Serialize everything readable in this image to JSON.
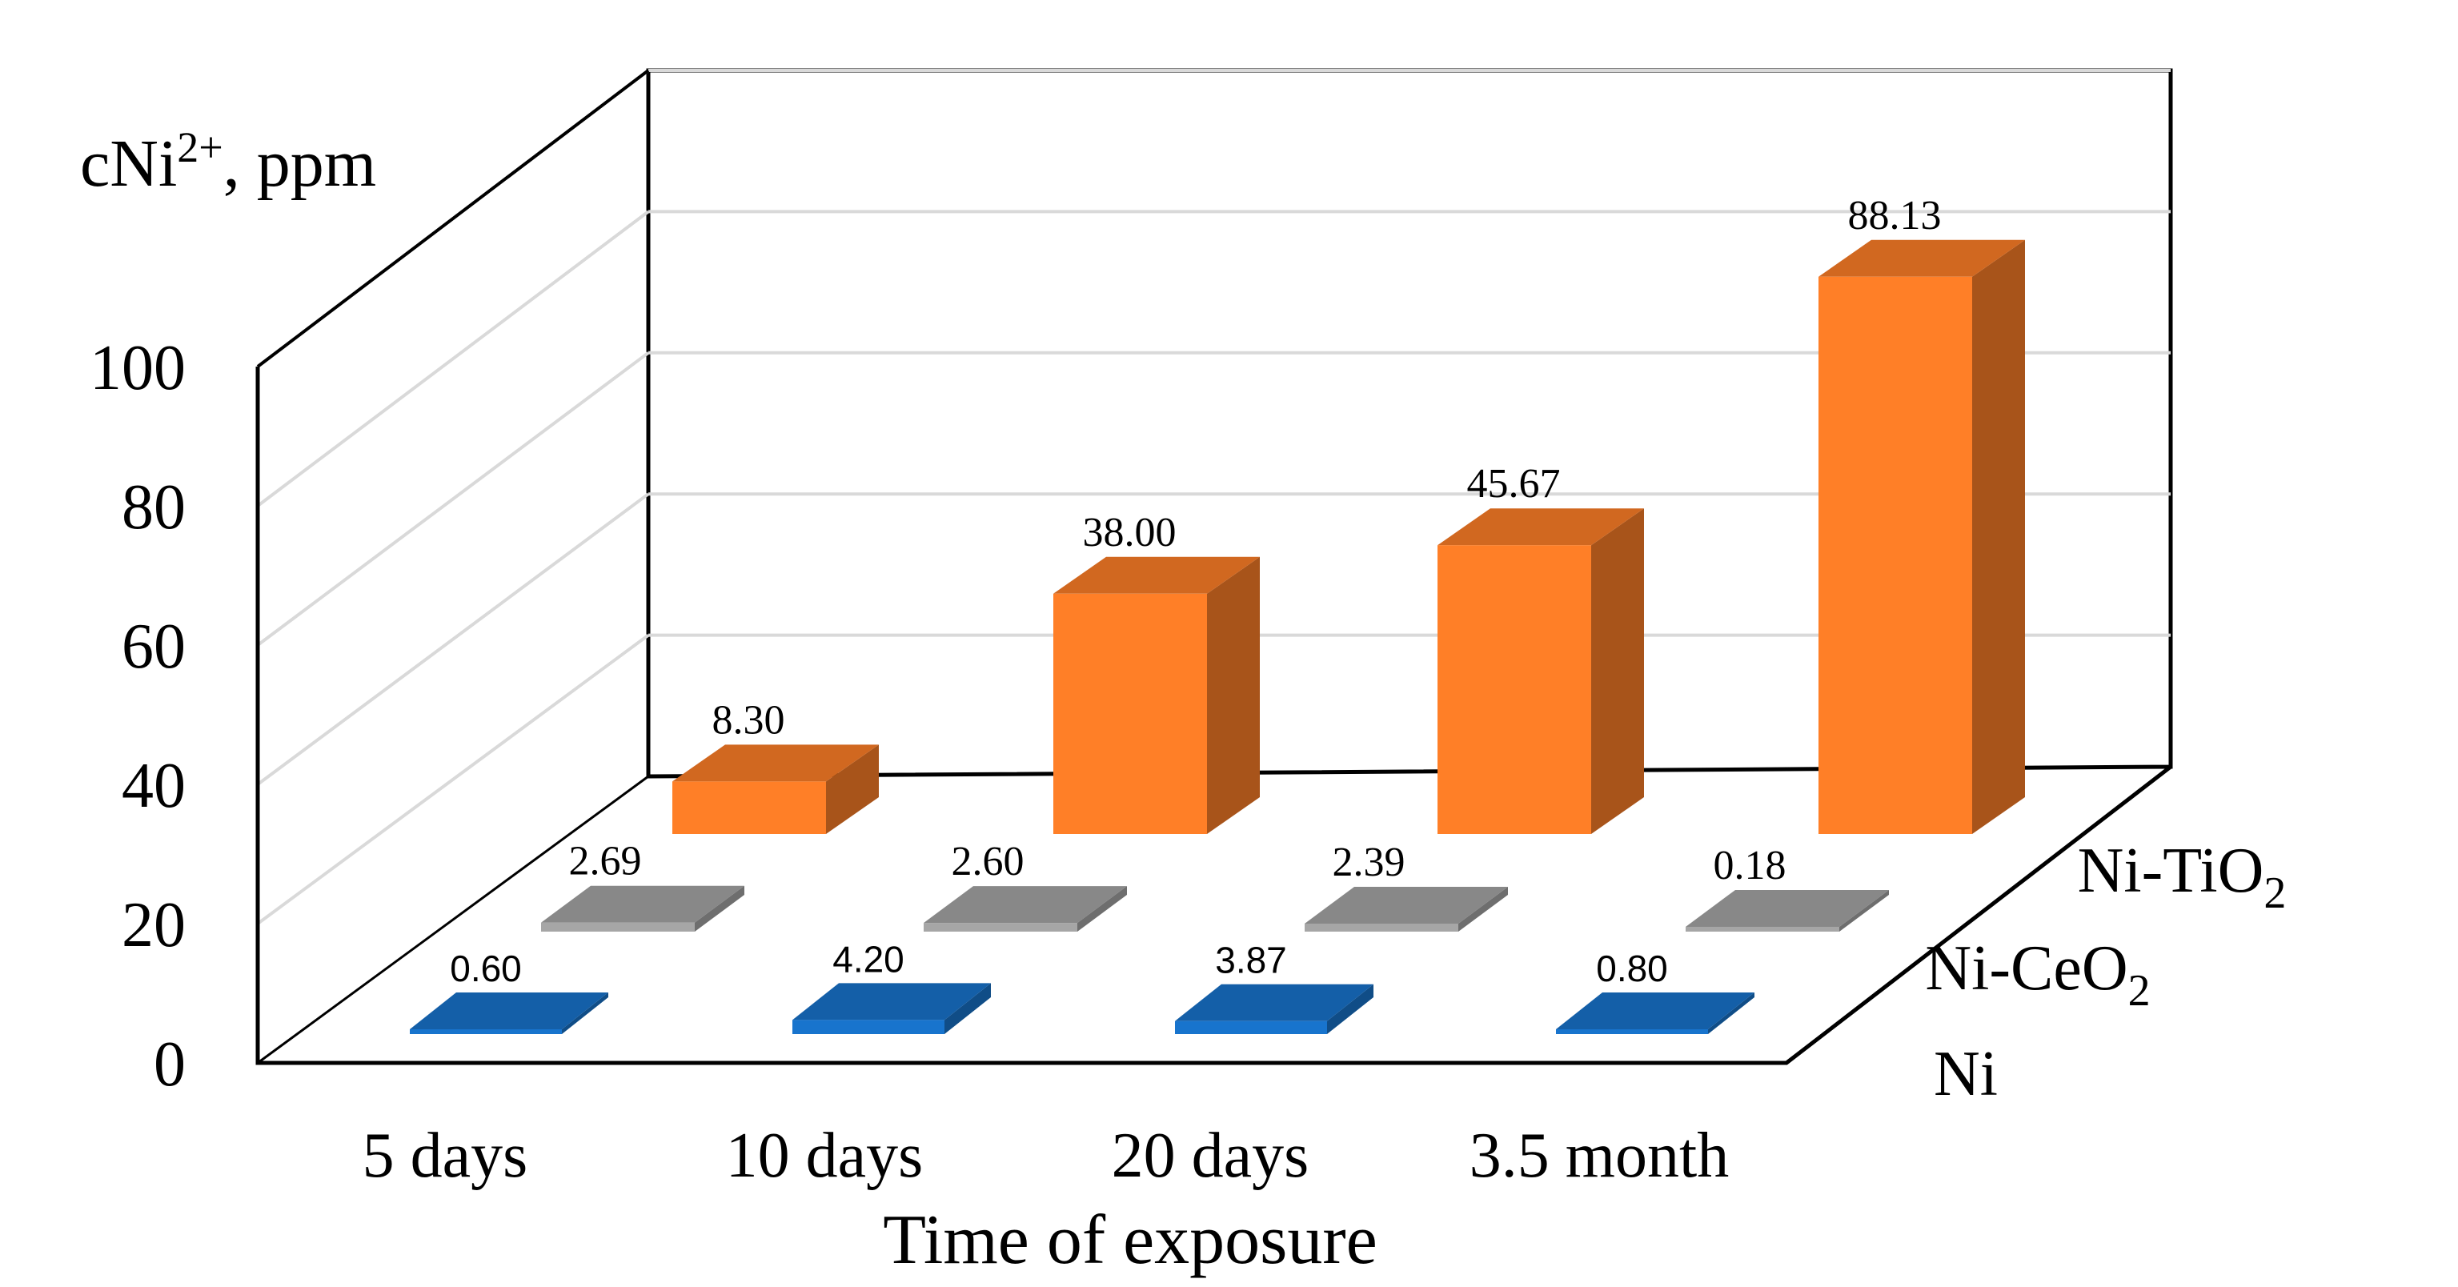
{
  "chart_data": {
    "type": "bar",
    "subtype": "3d-clustered-depth",
    "ylabel_main": "cNi",
    "ylabel_sup": "2+",
    "ylabel_suffix": ", ppm",
    "xlabel": "Time of exposure",
    "ylim": [
      0,
      100
    ],
    "yticks": [
      "0",
      "20",
      "40",
      "60",
      "80",
      "100"
    ],
    "categories": [
      "5 days",
      "10 days",
      "20 days",
      "3.5 month"
    ],
    "series": [
      {
        "name": "Ni",
        "label_main": "Ni",
        "label_sub": "",
        "color": "#1874CD",
        "values": [
          0.6,
          4.2,
          3.87,
          0.8
        ],
        "labels": [
          "0.60",
          "4.20",
          "3.87",
          "0.80"
        ]
      },
      {
        "name": "Ni-CeO2",
        "label_main": "Ni-CeO",
        "label_sub": "2",
        "color": "#A6A6A6",
        "values": [
          2.69,
          2.6,
          2.39,
          0.18
        ],
        "labels": [
          "2.69",
          "2.60",
          "2.39",
          "0.18"
        ]
      },
      {
        "name": "Ni-TiO2",
        "label_main": "Ni-TiO",
        "label_sub": "2",
        "color": "#FF7F27",
        "values": [
          8.3,
          38.0,
          45.67,
          88.13
        ],
        "labels": [
          "8.30",
          "38.00",
          "45.67",
          "88.13"
        ]
      }
    ]
  }
}
